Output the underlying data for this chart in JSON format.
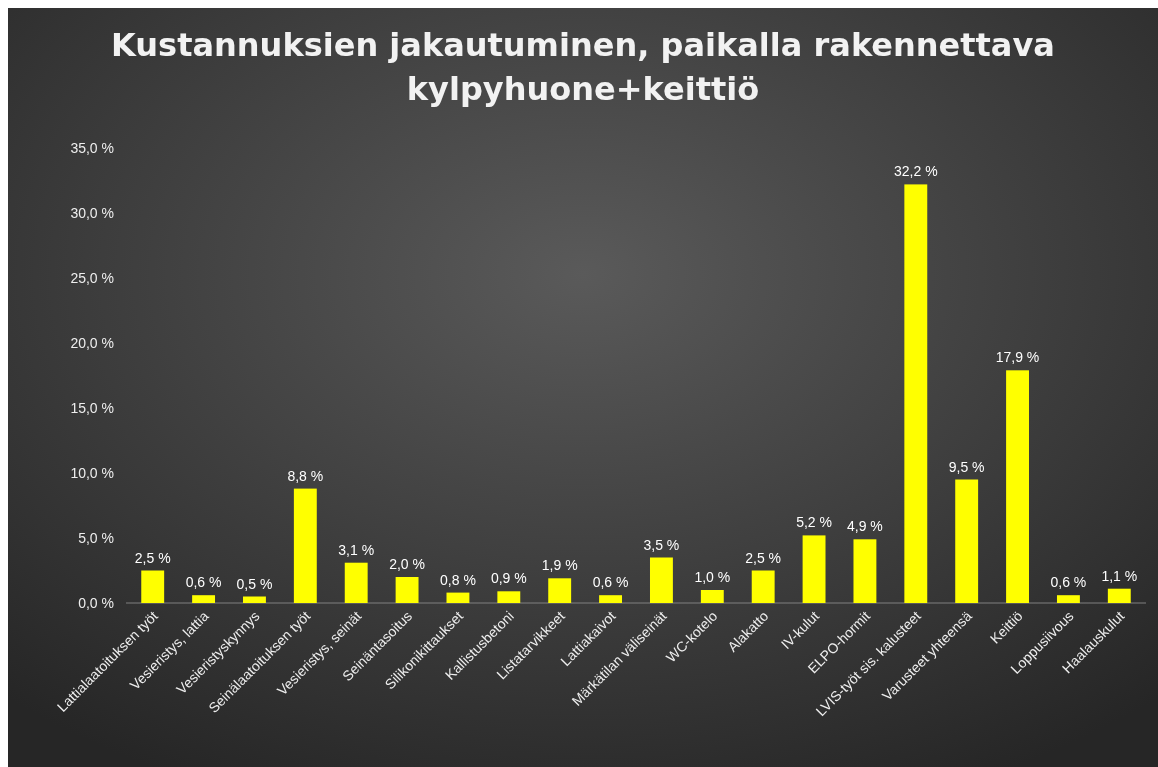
{
  "chart_data": {
    "type": "bar",
    "title": "Kustannuksien jakautuminen, paikalla rakennettava kylpyhuone+keittiö",
    "categories": [
      "Lattialaatoituksen työt",
      "Vesieristys, lattia",
      "Vesieristyskynnys",
      "Seinälaatoituksen työt",
      "Vesieristys, seinät",
      "Seinäntasoitus",
      "Silikonikittaukset",
      "Kallistusbetoni",
      "Listatarvikkeet",
      "Lattiakaivot",
      "Märkätilan väliseinät",
      "WC-kotelo",
      "Alakatto",
      "IV-kulut",
      "ELPO-hormit",
      "LVIS-työt sis. kalusteet",
      "Varusteet yhteensä",
      "Keittiö",
      "Loppusiivous",
      "Haalauskulut"
    ],
    "values": [
      2.5,
      0.6,
      0.5,
      8.8,
      3.1,
      2.0,
      0.8,
      0.9,
      1.9,
      0.6,
      3.5,
      1.0,
      2.5,
      5.2,
      4.9,
      32.2,
      9.5,
      17.9,
      0.6,
      1.1
    ],
    "value_labels": [
      "2,5 %",
      "0,6 %",
      "0,5 %",
      "8,8 %",
      "3,1 %",
      "2,0 %",
      "0,8 %",
      "0,9 %",
      "1,9 %",
      "0,6 %",
      "3,5 %",
      "1,0 %",
      "2,5 %",
      "5,2 %",
      "4,9 %",
      "32,2 %",
      "9,5 %",
      "17,9 %",
      "0,6 %",
      "1,1 %"
    ],
    "color": "#ffff00",
    "ylim": [
      0,
      35
    ],
    "yticks": [
      {
        "value": 0,
        "label": "0,0 %"
      },
      {
        "value": 5,
        "label": "5,0 %"
      },
      {
        "value": 10,
        "label": "10,0 %"
      },
      {
        "value": 15,
        "label": "15,0 %"
      },
      {
        "value": 20,
        "label": "20,0 %"
      },
      {
        "value": 25,
        "label": "25,0 %"
      },
      {
        "value": 30,
        "label": "30,0 %"
      },
      {
        "value": 35,
        "label": "35,0 %"
      }
    ],
    "grid": false
  }
}
